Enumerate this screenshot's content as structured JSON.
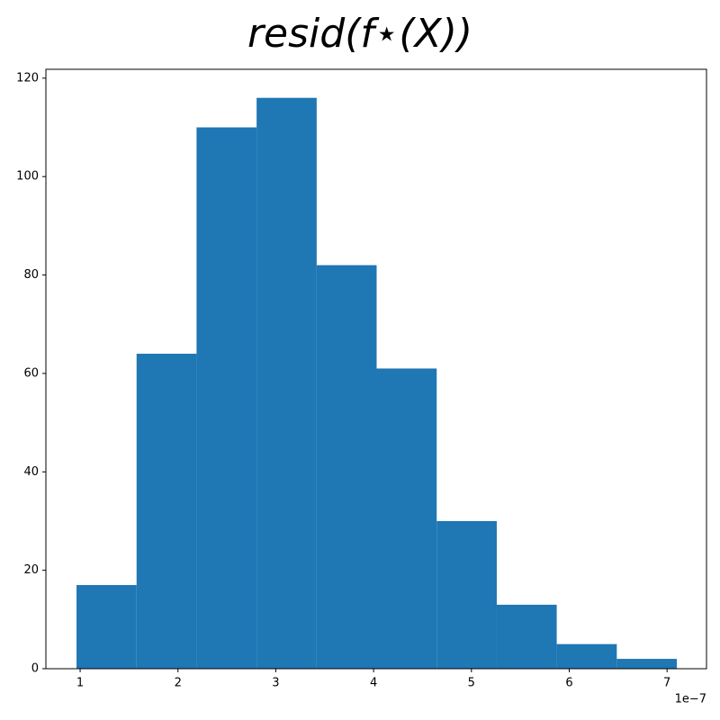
{
  "chart_data": {
    "type": "histogram",
    "title": "resid(f⋆(X))",
    "bins": [
      0.963,
      1.577,
      2.19,
      2.804,
      3.418,
      4.031,
      4.645,
      5.259,
      5.872,
      6.486,
      7.1
    ],
    "values": [
      17,
      64,
      110,
      116,
      82,
      61,
      30,
      13,
      5,
      2
    ],
    "color": "#1f77b4",
    "xlim": [
      0.65,
      7.403
    ],
    "xticks": [
      1,
      2,
      3,
      4,
      5,
      6,
      7
    ],
    "x_offset_label": "1e−7",
    "ylim": [
      0,
      121.8
    ],
    "yticks": [
      0,
      20,
      40,
      60,
      80,
      100,
      120
    ],
    "grid": false
  }
}
